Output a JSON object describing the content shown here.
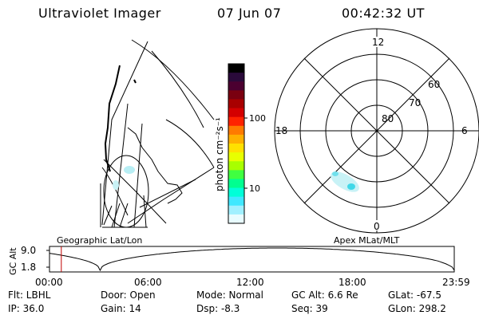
{
  "header": {
    "instrument": "Ultraviolet Imager",
    "date": "07 Jun 07",
    "time": "00:42:32 UT"
  },
  "colorbar": {
    "label": "photon cm⁻²s⁻¹",
    "ticks": [
      "100",
      "10"
    ],
    "colors": [
      "#000000",
      "#2a0a3a",
      "#4b0030",
      "#7a0010",
      "#a80000",
      "#d40000",
      "#ff2200",
      "#ff7a00",
      "#ffb000",
      "#ffe000",
      "#e8ff00",
      "#a8ff00",
      "#40ff40",
      "#00ff90",
      "#00ffd8",
      "#40e8ff",
      "#a0f0ff",
      "#e8fcff"
    ]
  },
  "polar_plot": {
    "mlt_labels": [
      "12",
      "18",
      "6",
      "0"
    ],
    "lat_labels": [
      "60",
      "70",
      "80"
    ]
  },
  "altitude_plot": {
    "left_title": "Geographic Lat/Lon",
    "right_title": "Apex MLat/MLT",
    "ylabel": "GC Alt",
    "yticks": [
      "9.0",
      "1.8"
    ],
    "xticks": [
      "00:00",
      "06:00",
      "12:00",
      "18:00",
      "23:59"
    ],
    "current_time_marker": "00:42"
  },
  "info": {
    "filter": "Flt: LBHL",
    "ip": "IP: 36.0",
    "door": "Door: Open",
    "gain": "Gain: 14",
    "mode": "Mode: Normal",
    "dsp": "Dsp:   -8.3",
    "gc_alt": "GC Alt: 6.6 Re",
    "seq": "Seq: 39",
    "glat": "GLat: -67.5",
    "glon": "GLon: 298.2"
  }
}
